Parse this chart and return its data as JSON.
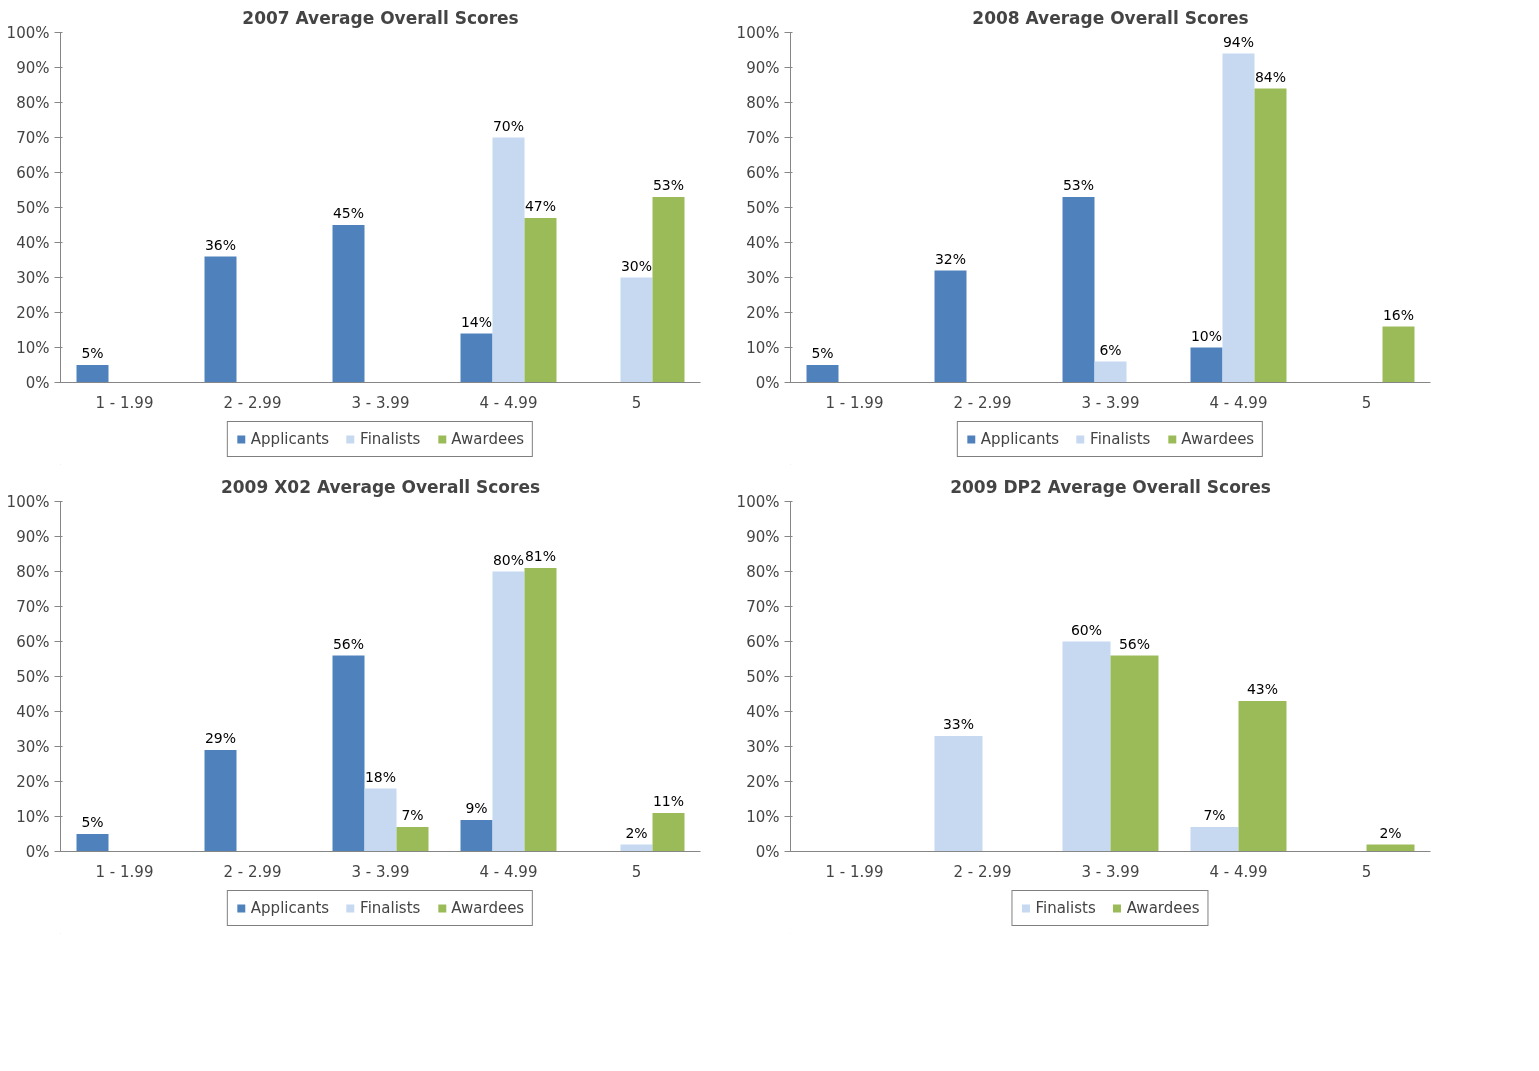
{
  "chart_data": [
    {
      "type": "bar",
      "title": "2007 Average Overall Scores",
      "categories": [
        "1 - 1.99",
        "2 - 2.99",
        "3 - 3.99",
        "4 - 4.99",
        "5"
      ],
      "series": [
        {
          "name": "Applicants",
          "color": "#4f81bd",
          "values": [
            5,
            36,
            45,
            14,
            null
          ],
          "value_labels": [
            "5%",
            "36%",
            "45%",
            "14%",
            null
          ]
        },
        {
          "name": "Finalists",
          "color": "#c6d9f1",
          "values": [
            null,
            null,
            null,
            70,
            30
          ],
          "value_labels": [
            null,
            null,
            null,
            "70%",
            "30%"
          ]
        },
        {
          "name": "Awardees",
          "color": "#9bbb59",
          "values": [
            null,
            null,
            null,
            47,
            53
          ],
          "value_labels": [
            null,
            null,
            null,
            "47%",
            "53%"
          ]
        }
      ],
      "ylim": [
        0,
        100
      ],
      "yticks": [
        {
          "value": 0,
          "label": "0%"
        },
        {
          "value": 10,
          "label": "10%"
        },
        {
          "value": 20,
          "label": "20%"
        },
        {
          "value": 30,
          "label": "30%"
        },
        {
          "value": 40,
          "label": "40%"
        },
        {
          "value": 50,
          "label": "50%"
        },
        {
          "value": 60,
          "label": "60%"
        },
        {
          "value": 70,
          "label": "70%"
        },
        {
          "value": 80,
          "label": "80%"
        },
        {
          "value": 90,
          "label": "90%"
        },
        {
          "value": 100,
          "label": "100%"
        }
      ],
      "grid": false,
      "legend": "bottom"
    },
    {
      "type": "bar",
      "title": "2008 Average Overall Scores",
      "categories": [
        "1 - 1.99",
        "2 - 2.99",
        "3 - 3.99",
        "4 - 4.99",
        "5"
      ],
      "series": [
        {
          "name": "Applicants",
          "color": "#4f81bd",
          "values": [
            5,
            32,
            53,
            10,
            null
          ],
          "value_labels": [
            "5%",
            "32%",
            "53%",
            "10%",
            null
          ]
        },
        {
          "name": "Finalists",
          "color": "#c6d9f1",
          "values": [
            null,
            null,
            6,
            94,
            null
          ],
          "value_labels": [
            null,
            null,
            "6%",
            "94%",
            null
          ]
        },
        {
          "name": "Awardees",
          "color": "#9bbb59",
          "values": [
            null,
            null,
            null,
            84,
            16
          ],
          "value_labels": [
            null,
            null,
            null,
            "84%",
            "16%"
          ]
        }
      ],
      "ylim": [
        0,
        100
      ],
      "yticks": [
        {
          "value": 0,
          "label": "0%"
        },
        {
          "value": 10,
          "label": "10%"
        },
        {
          "value": 20,
          "label": "20%"
        },
        {
          "value": 30,
          "label": "30%"
        },
        {
          "value": 40,
          "label": "40%"
        },
        {
          "value": 50,
          "label": "50%"
        },
        {
          "value": 60,
          "label": "60%"
        },
        {
          "value": 70,
          "label": "70%"
        },
        {
          "value": 80,
          "label": "80%"
        },
        {
          "value": 90,
          "label": "90%"
        },
        {
          "value": 100,
          "label": "100%"
        }
      ],
      "grid": false,
      "legend": "bottom"
    },
    {
      "type": "bar",
      "title": "2009 X02 Average Overall Scores",
      "categories": [
        "1 - 1.99",
        "2 - 2.99",
        "3 - 3.99",
        "4 - 4.99",
        "5"
      ],
      "series": [
        {
          "name": "Applicants",
          "color": "#4f81bd",
          "values": [
            5,
            29,
            56,
            9,
            null
          ],
          "value_labels": [
            "5%",
            "29%",
            "56%",
            "9%",
            null
          ]
        },
        {
          "name": "Finalists",
          "color": "#c6d9f1",
          "values": [
            null,
            null,
            18,
            80,
            2
          ],
          "value_labels": [
            null,
            null,
            "18%",
            "80%",
            "2%"
          ]
        },
        {
          "name": "Awardees",
          "color": "#9bbb59",
          "values": [
            null,
            null,
            7,
            81,
            11
          ],
          "value_labels": [
            null,
            null,
            "7%",
            "81%",
            "11%"
          ]
        }
      ],
      "ylim": [
        0,
        100
      ],
      "yticks": [
        {
          "value": 0,
          "label": "0%"
        },
        {
          "value": 10,
          "label": "10%"
        },
        {
          "value": 20,
          "label": "20%"
        },
        {
          "value": 30,
          "label": "30%"
        },
        {
          "value": 40,
          "label": "40%"
        },
        {
          "value": 50,
          "label": "50%"
        },
        {
          "value": 60,
          "label": "60%"
        },
        {
          "value": 70,
          "label": "70%"
        },
        {
          "value": 80,
          "label": "80%"
        },
        {
          "value": 90,
          "label": "90%"
        },
        {
          "value": 100,
          "label": "100%"
        }
      ],
      "grid": false,
      "legend": "bottom"
    },
    {
      "type": "bar",
      "title": "2009 DP2 Average Overall Scores",
      "categories": [
        "1 - 1.99",
        "2 - 2.99",
        "3 - 3.99",
        "4 - 4.99",
        "5"
      ],
      "series": [
        {
          "name": "Finalists",
          "color": "#c6d9f1",
          "values": [
            null,
            33,
            60,
            7,
            null
          ],
          "value_labels": [
            null,
            "33%",
            "60%",
            "7%",
            null
          ]
        },
        {
          "name": "Awardees",
          "color": "#9bbb59",
          "values": [
            null,
            null,
            56,
            43,
            2
          ],
          "value_labels": [
            null,
            null,
            "56%",
            "43%",
            "2%"
          ]
        }
      ],
      "ylim": [
        0,
        100
      ],
      "yticks": [
        {
          "value": 0,
          "label": "0%"
        },
        {
          "value": 10,
          "label": "10%"
        },
        {
          "value": 20,
          "label": "20%"
        },
        {
          "value": 30,
          "label": "30%"
        },
        {
          "value": 40,
          "label": "40%"
        },
        {
          "value": 50,
          "label": "50%"
        },
        {
          "value": 60,
          "label": "60%"
        },
        {
          "value": 70,
          "label": "70%"
        },
        {
          "value": 80,
          "label": "80%"
        },
        {
          "value": 90,
          "label": "90%"
        },
        {
          "value": 100,
          "label": "100%"
        }
      ],
      "grid": false,
      "legend": "bottom"
    }
  ]
}
